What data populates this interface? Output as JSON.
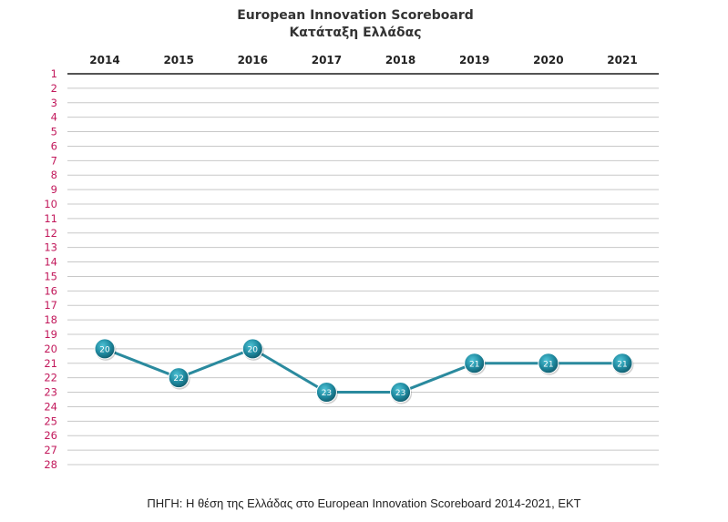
{
  "chart_data": {
    "type": "line",
    "title": "European Innovation Scoreboard",
    "subtitle": "Κατάταξη Ελλάδας",
    "categories": [
      "2014",
      "2015",
      "2016",
      "2017",
      "2018",
      "2019",
      "2020",
      "2021"
    ],
    "series": [
      {
        "values": [
          20,
          22,
          20,
          23,
          23,
          21,
          21,
          21
        ]
      }
    ],
    "y_ticks": [
      "1",
      "2",
      "3",
      "4",
      "5",
      "6",
      "7",
      "8",
      "9",
      "10",
      "11",
      "12",
      "13",
      "14",
      "15",
      "16",
      "17",
      "18",
      "19",
      "20",
      "21",
      "22",
      "23",
      "24",
      "25",
      "26",
      "27",
      "28"
    ],
    "ylim": [
      1,
      28
    ],
    "y_inverted": true,
    "grid": true,
    "xlabel": "",
    "ylabel": ""
  },
  "source_note": "ΠΗΓΗ: Η θέση της Ελλάδας στο European Innovation Scoreboard 2014-2021, ΕΚΤ",
  "colors": {
    "line": "#2a8a9e",
    "marker": "#1f7d93",
    "marker_highlight": "#3aa6bb",
    "y_tick": "#c2185b",
    "x_tick": "#222222",
    "grid": "#c8c8c8",
    "top_axis": "#555555"
  }
}
